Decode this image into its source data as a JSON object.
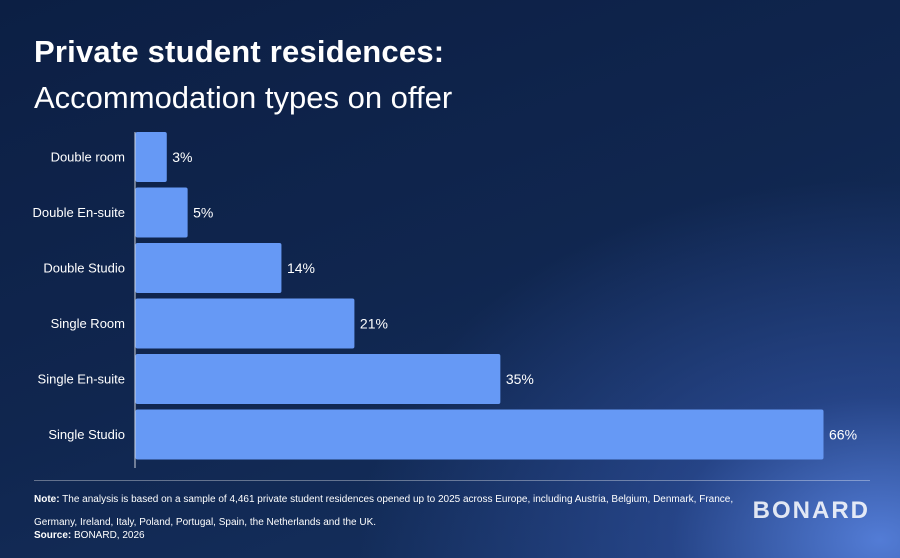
{
  "title": "Private student residences:",
  "subtitle": "Accommodation types on offer",
  "chart_data": {
    "type": "bar",
    "orientation": "horizontal",
    "categories": [
      "Double room",
      "Double En-suite",
      "Double Studio",
      "Single Room",
      "Single En-suite",
      "Single Studio"
    ],
    "values": [
      3,
      5,
      14,
      21,
      35,
      66
    ],
    "value_labels": [
      "3%",
      "5%",
      "14%",
      "21%",
      "35%",
      "66%"
    ],
    "bar_color": "#6699f5",
    "xlim": [
      0,
      66
    ],
    "grid": false
  },
  "note": {
    "label": "Note:",
    "text": "The analysis is based on a sample of 4,461 private student residences opened up to 2025 across Europe, including Austria, Belgium, Denmark, France, Germany, Ireland, Italy, Poland, Portugal, Spain, the Netherlands and the UK."
  },
  "source": {
    "label": "Source:",
    "text": "BONARD, 2026"
  },
  "logo": "BONARD"
}
